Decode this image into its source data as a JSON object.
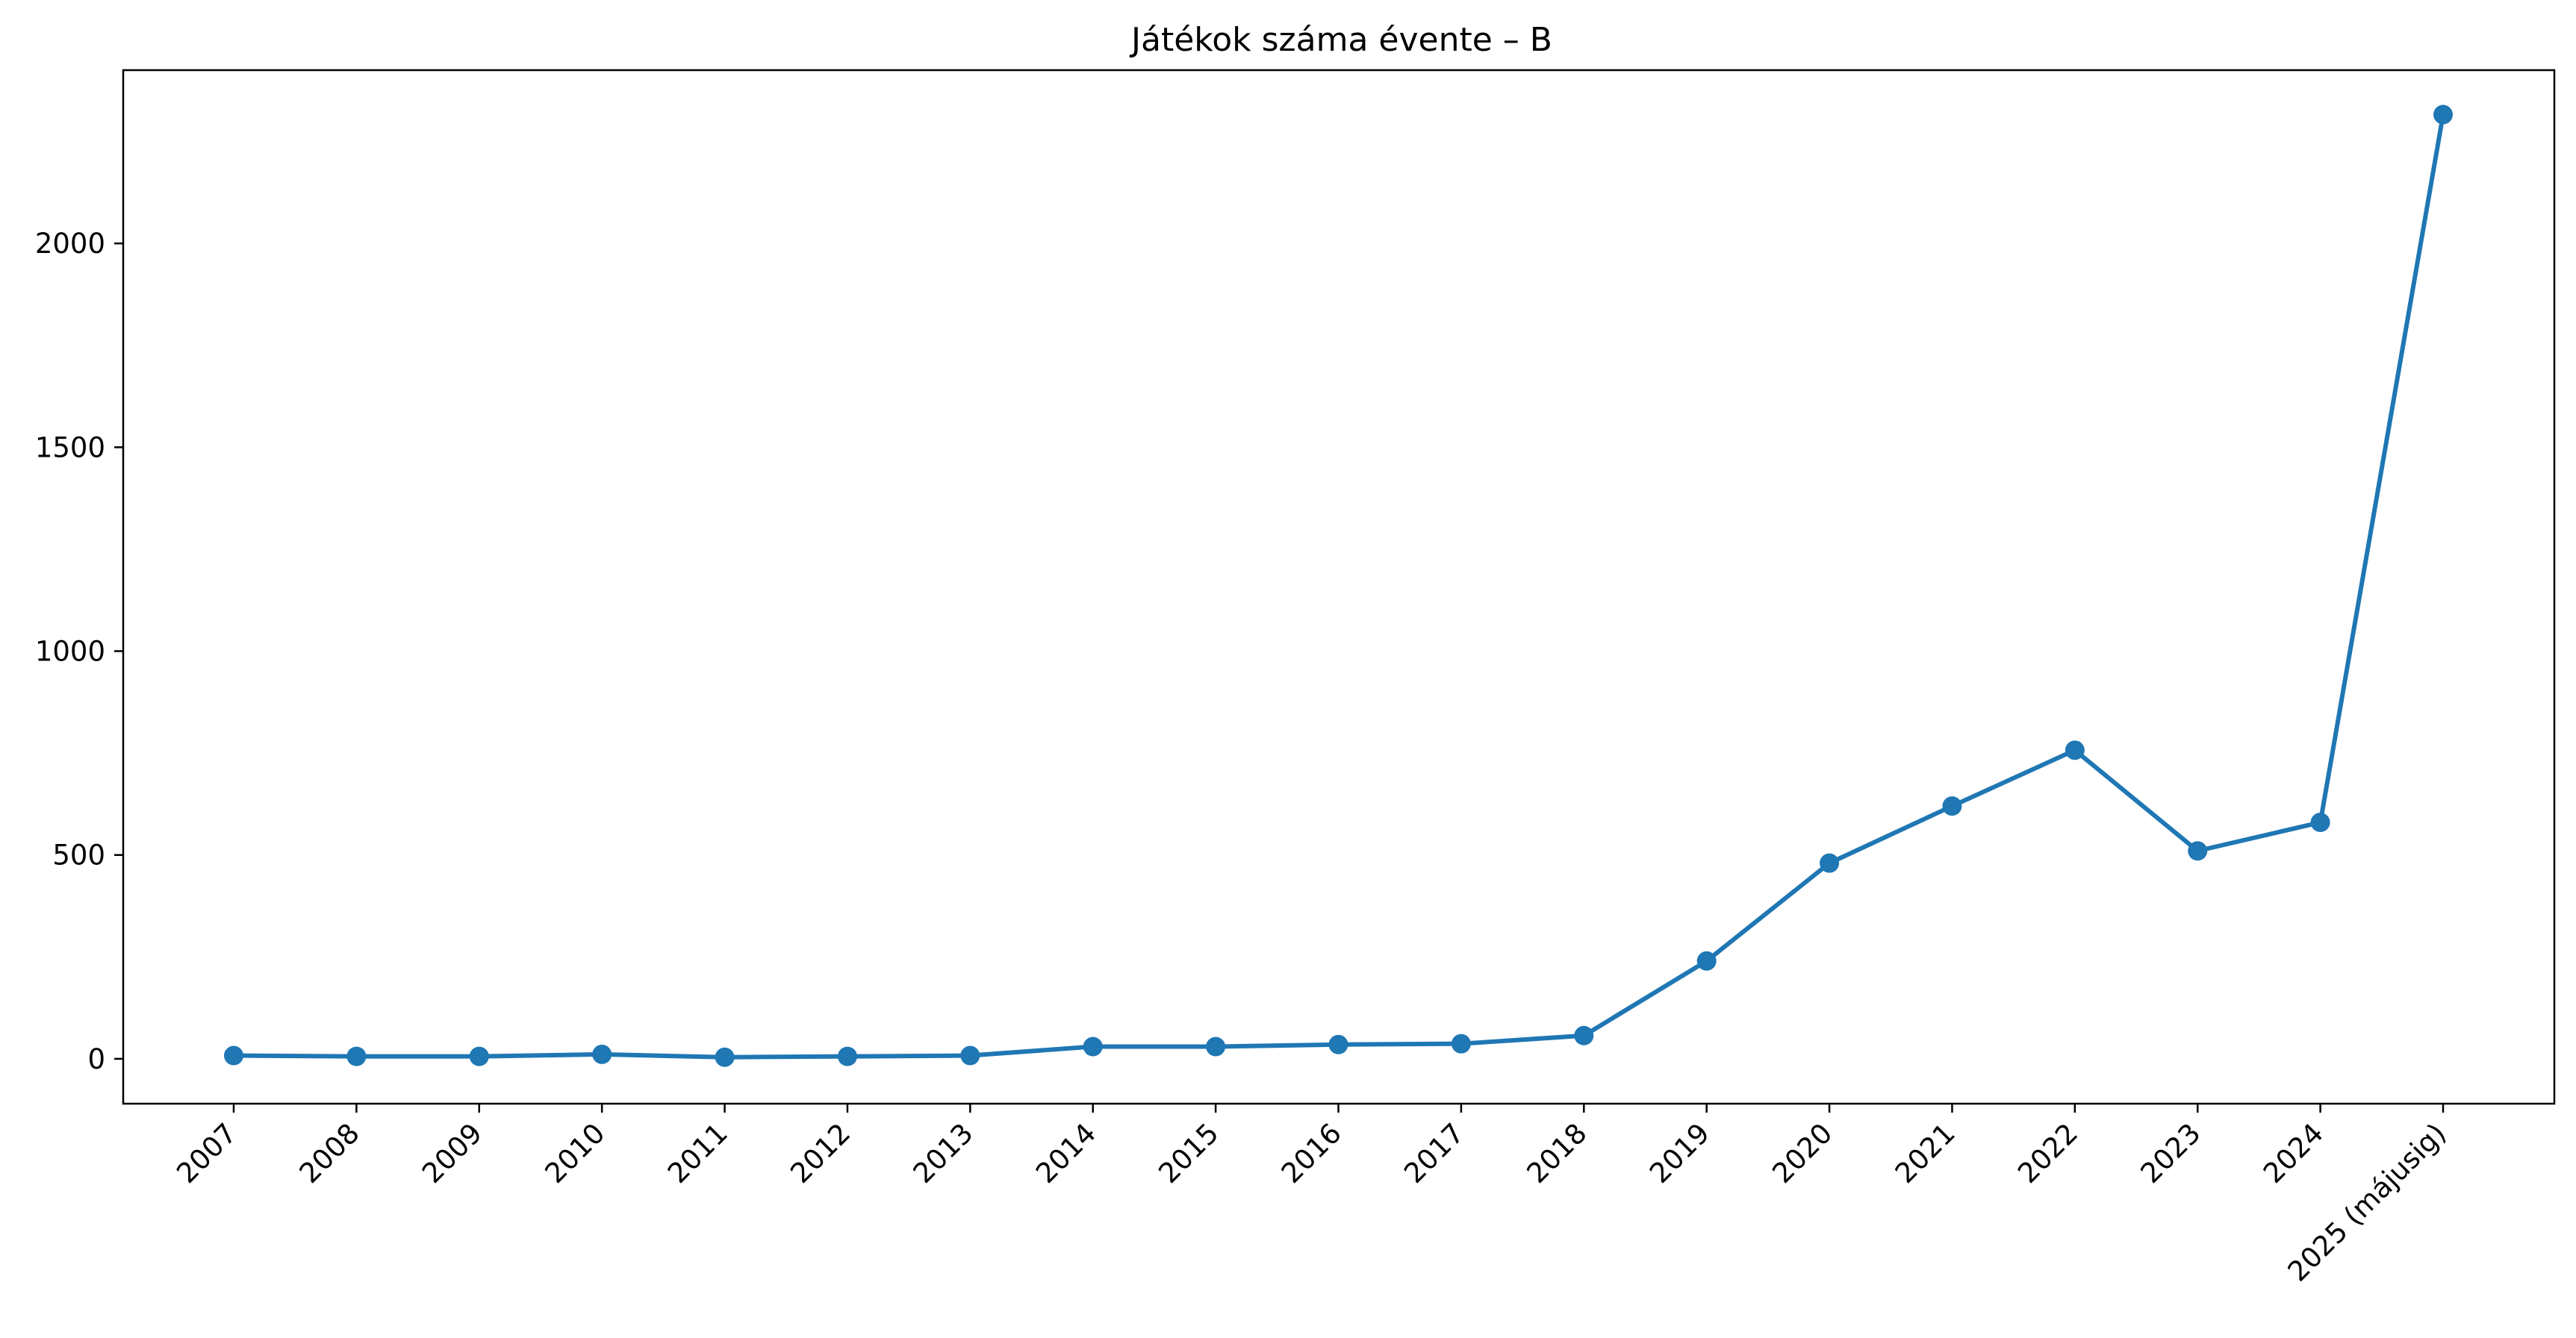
{
  "chart_data": {
    "type": "line",
    "title": "Játékok száma évente – B",
    "xlabel": "",
    "ylabel": "",
    "categories": [
      "2007",
      "2008",
      "2009",
      "2010",
      "2011",
      "2012",
      "2013",
      "2014",
      "2015",
      "2016",
      "2017",
      "2018",
      "2019",
      "2020",
      "2021",
      "2022",
      "2023",
      "2024",
      "2025 (májusig)"
    ],
    "series": [
      {
        "values": [
          8,
          6,
          6,
          11,
          4,
          6,
          8,
          30,
          30,
          35,
          37,
          57,
          240,
          480,
          620,
          757,
          510,
          580,
          2316
        ]
      }
    ],
    "ylim": [
      -110,
      2425
    ],
    "yticks": [
      0,
      500,
      1000,
      1500,
      2000
    ],
    "grid": false,
    "legend": "none",
    "line_color": "#1f77b4",
    "marker": "circle"
  }
}
